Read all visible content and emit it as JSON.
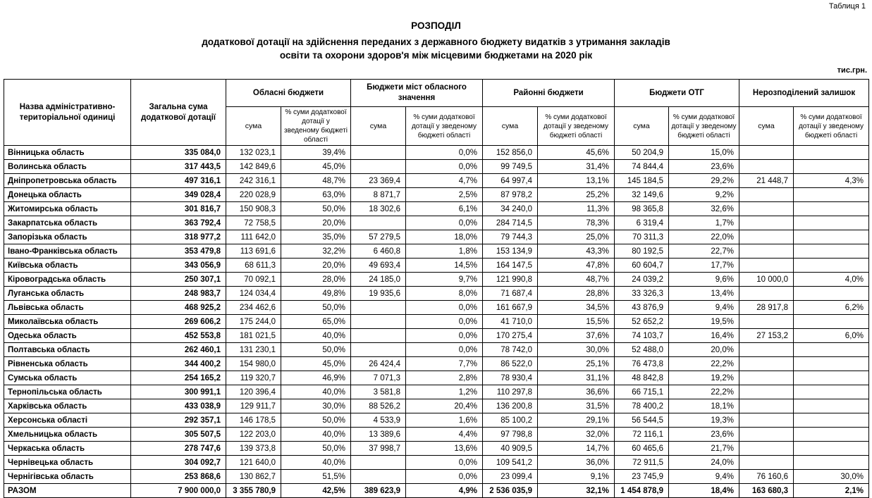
{
  "page": {
    "table_label": "Таблиця 1",
    "title": "РОЗПОДІЛ",
    "subtitle_line1": "додаткової дотації на здійснення переданих з державного бюджету видатків з утримання закладів",
    "subtitle_line2": "освіти та охорони здоров'я між місцевими бюджетами на 2020 рік",
    "units": "тис.грн."
  },
  "table": {
    "col_name_header": "Назва адміністративно-територіальної одиниці",
    "col_total_header": "Загальна сума додаткової дотації",
    "groups": [
      "Обласні бюджети",
      "Бюджети міст обласного значення",
      "Районні бюджети",
      "Бюджети ОТГ",
      "Нерозподілений залишок"
    ],
    "sub_sum": "сума",
    "sub_pct": "% суми додаткової дотації у зведеному бюджеті області",
    "rows": [
      {
        "name": "Вінницька область",
        "total": "335 084,0",
        "values": [
          "132 023,1",
          "39,4%",
          "",
          "0,0%",
          "152 856,0",
          "45,6%",
          "50 204,9",
          "15,0%",
          "",
          ""
        ]
      },
      {
        "name": "Волинська область",
        "total": "317 443,5",
        "values": [
          "142 849,6",
          "45,0%",
          "",
          "0,0%",
          "99 749,5",
          "31,4%",
          "74 844,4",
          "23,6%",
          "",
          ""
        ]
      },
      {
        "name": "Дніпропетровська область",
        "total": "497 316,1",
        "values": [
          "242 316,1",
          "48,7%",
          "23 369,4",
          "4,7%",
          "64 997,4",
          "13,1%",
          "145 184,5",
          "29,2%",
          "21 448,7",
          "4,3%"
        ]
      },
      {
        "name": "Донецька область",
        "total": "349 028,4",
        "values": [
          "220 028,9",
          "63,0%",
          "8 871,7",
          "2,5%",
          "87 978,2",
          "25,2%",
          "32 149,6",
          "9,2%",
          "",
          ""
        ]
      },
      {
        "name": "Житомирська область",
        "total": "301 816,7",
        "values": [
          "150 908,3",
          "50,0%",
          "18 302,6",
          "6,1%",
          "34 240,0",
          "11,3%",
          "98 365,8",
          "32,6%",
          "",
          ""
        ]
      },
      {
        "name": "Закарпатська область",
        "total": "363 792,4",
        "values": [
          "72 758,5",
          "20,0%",
          "",
          "0,0%",
          "284 714,5",
          "78,3%",
          "6 319,4",
          "1,7%",
          "",
          ""
        ]
      },
      {
        "name": "Запорізька область",
        "total": "318 977,2",
        "values": [
          "111 642,0",
          "35,0%",
          "57 279,5",
          "18,0%",
          "79 744,3",
          "25,0%",
          "70 311,3",
          "22,0%",
          "",
          ""
        ]
      },
      {
        "name": "Івано-Франківська область",
        "total": "353 479,8",
        "values": [
          "113 691,6",
          "32,2%",
          "6 460,8",
          "1,8%",
          "153 134,9",
          "43,3%",
          "80 192,5",
          "22,7%",
          "",
          ""
        ]
      },
      {
        "name": "Київська область",
        "total": "343 056,9",
        "values": [
          "68 611,3",
          "20,0%",
          "49 693,4",
          "14,5%",
          "164 147,5",
          "47,8%",
          "60 604,7",
          "17,7%",
          "",
          ""
        ]
      },
      {
        "name": "Кіровоградська область",
        "total": "250 307,1",
        "values": [
          "70 092,1",
          "28,0%",
          "24 185,0",
          "9,7%",
          "121 990,8",
          "48,7%",
          "24 039,2",
          "9,6%",
          "10 000,0",
          "4,0%"
        ]
      },
      {
        "name": "Луганська область",
        "total": "248 983,7",
        "values": [
          "124 034,4",
          "49,8%",
          "19 935,6",
          "8,0%",
          "71 687,4",
          "28,8%",
          "33 326,3",
          "13,4%",
          "",
          ""
        ]
      },
      {
        "name": "Львівська область",
        "total": "468 925,2",
        "values": [
          "234 462,6",
          "50,0%",
          "",
          "0,0%",
          "161 667,9",
          "34,5%",
          "43 876,9",
          "9,4%",
          "28 917,8",
          "6,2%"
        ]
      },
      {
        "name": "Миколаївська область",
        "total": "269 606,2",
        "values": [
          "175 244,0",
          "65,0%",
          "",
          "0,0%",
          "41 710,0",
          "15,5%",
          "52 652,2",
          "19,5%",
          "",
          ""
        ]
      },
      {
        "name": "Одеська область",
        "total": "452 553,8",
        "values": [
          "181 021,5",
          "40,0%",
          "",
          "0,0%",
          "170 275,4",
          "37,6%",
          "74 103,7",
          "16,4%",
          "27 153,2",
          "6,0%"
        ]
      },
      {
        "name": "Полтавська область",
        "total": "262 460,1",
        "values": [
          "131 230,1",
          "50,0%",
          "",
          "0,0%",
          "78 742,0",
          "30,0%",
          "52 488,0",
          "20,0%",
          "",
          ""
        ]
      },
      {
        "name": "Рівненська область",
        "total": "344 400,2",
        "values": [
          "154 980,0",
          "45,0%",
          "26 424,4",
          "7,7%",
          "86 522,0",
          "25,1%",
          "76 473,8",
          "22,2%",
          "",
          ""
        ]
      },
      {
        "name": "Сумська область",
        "total": "254 165,2",
        "values": [
          "119 320,7",
          "46,9%",
          "7 071,3",
          "2,8%",
          "78 930,4",
          "31,1%",
          "48 842,8",
          "19,2%",
          "",
          ""
        ]
      },
      {
        "name": "Тернопільська область",
        "total": "300 991,1",
        "values": [
          "120 396,4",
          "40,0%",
          "3 581,8",
          "1,2%",
          "110 297,8",
          "36,6%",
          "66 715,1",
          "22,2%",
          "",
          ""
        ]
      },
      {
        "name": "Харківська область",
        "total": "433 038,9",
        "values": [
          "129 911,7",
          "30,0%",
          "88 526,2",
          "20,4%",
          "136 200,8",
          "31,5%",
          "78 400,2",
          "18,1%",
          "",
          ""
        ]
      },
      {
        "name": "Херсонська області",
        "total": "292 357,1",
        "values": [
          "146 178,5",
          "50,0%",
          "4 533,9",
          "1,6%",
          "85 100,2",
          "29,1%",
          "56 544,5",
          "19,3%",
          "",
          ""
        ]
      },
      {
        "name": "Хмельницька область",
        "total": "305 507,5",
        "values": [
          "122 203,0",
          "40,0%",
          "13 389,6",
          "4,4%",
          "97 798,8",
          "32,0%",
          "72 116,1",
          "23,6%",
          "",
          ""
        ]
      },
      {
        "name": "Черкаська область",
        "total": "278 747,6",
        "values": [
          "139 373,8",
          "50,0%",
          "37 998,7",
          "13,6%",
          "40 909,5",
          "14,7%",
          "60 465,6",
          "21,7%",
          "",
          ""
        ]
      },
      {
        "name": "Чернівецька область",
        "total": "304 092,7",
        "values": [
          "121 640,0",
          "40,0%",
          "",
          "0,0%",
          "109 541,2",
          "36,0%",
          "72 911,5",
          "24,0%",
          "",
          ""
        ]
      },
      {
        "name": "Чернігівська область",
        "total": "253 868,6",
        "values": [
          "130 862,7",
          "51,5%",
          "",
          "0,0%",
          "23 099,4",
          "9,1%",
          "23 745,9",
          "9,4%",
          "76 160,6",
          "30,0%"
        ]
      }
    ],
    "total_row": {
      "name": "РАЗОМ",
      "total": "7 900 000,0",
      "values": [
        "3 355 780,9",
        "42,5%",
        "389 623,9",
        "4,9%",
        "2 536 035,9",
        "32,1%",
        "1 454 878,9",
        "18,4%",
        "163 680,3",
        "2,1%"
      ]
    }
  }
}
